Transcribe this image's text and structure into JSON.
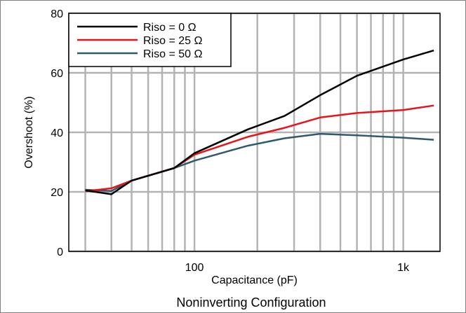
{
  "caption": "Noninverting Configuration",
  "chart_data": {
    "type": "line",
    "title": "",
    "xlabel": "Capacitance (pF)",
    "ylabel": "Overshoot (%)",
    "x_scale": "log",
    "xlim": [
      25,
      1500
    ],
    "ylim": [
      0,
      80
    ],
    "y_ticks": [
      0,
      20,
      40,
      60,
      80
    ],
    "x_ticks": [
      {
        "value": 100,
        "label": "100"
      },
      {
        "value": 1000,
        "label": "1k"
      }
    ],
    "x_minor_grid": [
      30,
      40,
      50,
      60,
      70,
      80,
      90,
      200,
      300,
      400,
      500,
      600,
      700,
      800,
      900
    ],
    "grid": true,
    "legend_position": "top-left",
    "series": [
      {
        "name": "Riso = 0 Ω",
        "color": "#000000",
        "x": [
          30,
          40,
          50,
          80,
          100,
          180,
          270,
          400,
          600,
          1000,
          1400
        ],
        "y": [
          20.5,
          19.2,
          23.8,
          28,
          33,
          41,
          45.5,
          52.5,
          59,
          64.5,
          67.5
        ]
      },
      {
        "name": "Riso = 25 Ω",
        "color": "#e8141b",
        "x": [
          30,
          40,
          50,
          80,
          100,
          180,
          270,
          400,
          600,
          1000,
          1400
        ],
        "y": [
          20.2,
          21.2,
          23.8,
          28,
          32.5,
          38.5,
          41.5,
          45,
          46.5,
          47.5,
          49
        ]
      },
      {
        "name": "Riso = 50 Ω",
        "color": "#2e5a6e",
        "x": [
          30,
          40,
          50,
          80,
          100,
          180,
          270,
          400,
          600,
          1000,
          1400
        ],
        "y": [
          20.7,
          20.3,
          23.8,
          28,
          30.5,
          35.5,
          38,
          39.5,
          39,
          38.2,
          37.5
        ]
      }
    ]
  }
}
